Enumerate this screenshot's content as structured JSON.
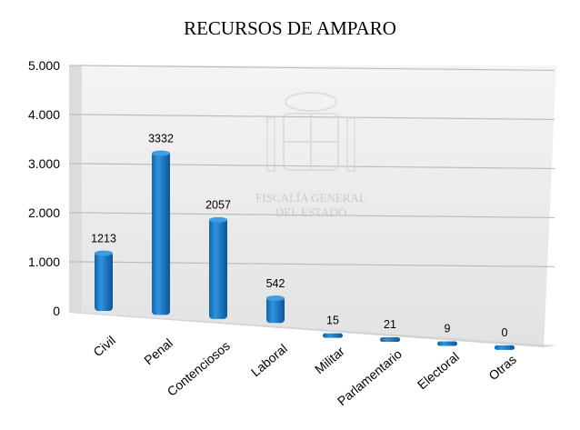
{
  "chart_data": {
    "type": "bar",
    "title": "RECURSOS DE AMPARO",
    "categories": [
      "Civil",
      "Penal",
      "Contenciosos",
      "Laboral",
      "Militar",
      "Parlamentario",
      "Electoral",
      "Otras"
    ],
    "values": [
      1213,
      3332,
      2057,
      542,
      15,
      21,
      9,
      0
    ],
    "data_labels": [
      "1213",
      "3332",
      "2057",
      "542",
      "15",
      "21",
      "9",
      "0"
    ],
    "yticks": [
      "0",
      "1.000",
      "2.000",
      "3.000",
      "4.000",
      "5.000"
    ],
    "ylim": [
      0,
      5000
    ],
    "grid": true,
    "bar_color": "#1f7fc8",
    "wall_color": "#e9e9e9",
    "floor_color": "#d9d9d9"
  },
  "watermark": {
    "line1": "FISCALÍA GENERAL",
    "line2": "DEL ESTADO"
  }
}
